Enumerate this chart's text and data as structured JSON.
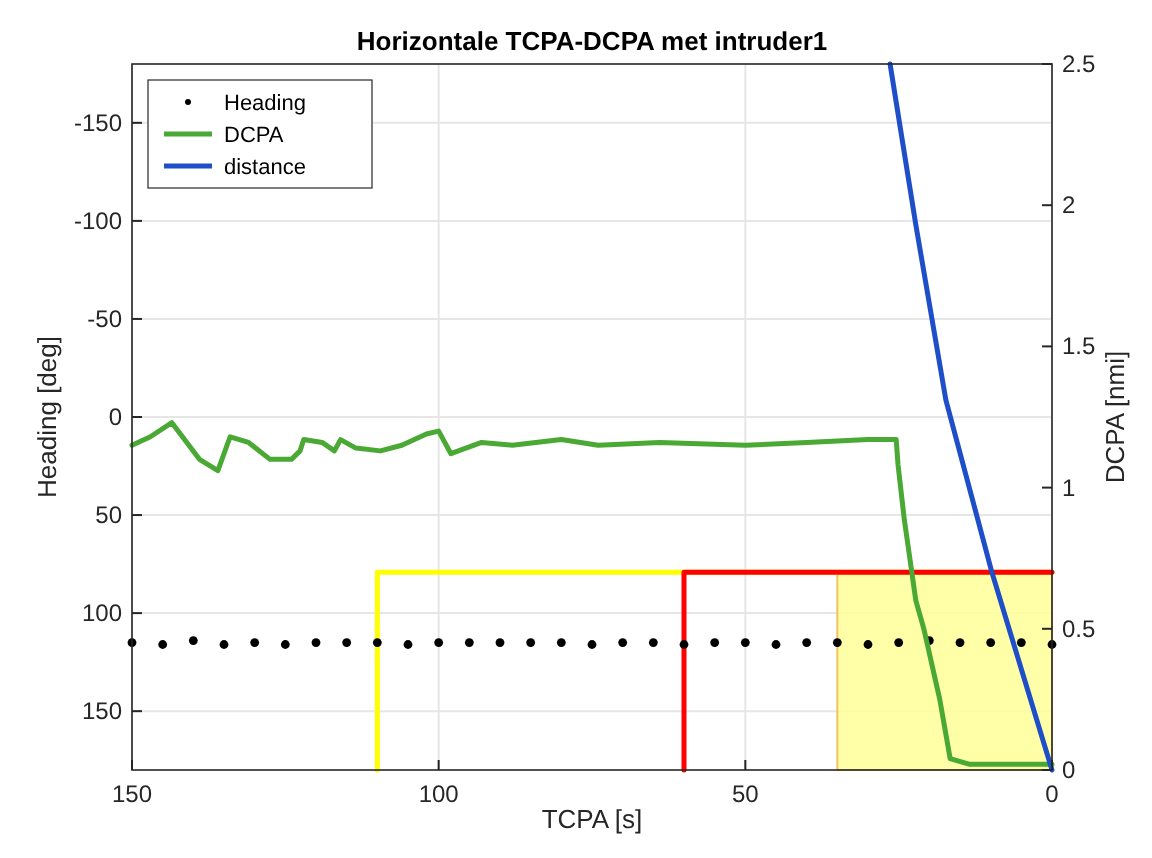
{
  "chart_data": {
    "type": "line",
    "title": "Horizontale TCPA-DCPA met intruder1",
    "xlabel": "TCPA [s]",
    "ylabel": "Heading [deg]",
    "y2label": "DCPA [nmi]",
    "xlim": [
      150,
      0
    ],
    "xticks": [
      150,
      100,
      50,
      0
    ],
    "ylim": [
      180,
      -180
    ],
    "yticks": [
      -150,
      -100,
      -50,
      0,
      50,
      100,
      150
    ],
    "y2lim": [
      0,
      2.5
    ],
    "y2ticks": [
      0,
      0.5,
      1,
      1.5,
      2,
      2.5
    ],
    "grid": true,
    "legend": "top left",
    "series": [
      {
        "type": "area",
        "axis": "y2",
        "color": "#ffff99",
        "x": [
          35,
          0
        ],
        "values": [
          0.7,
          0.7
        ]
      },
      {
        "type": "line",
        "axis": "y2",
        "color": "#ffff00",
        "x": [
          110,
          110,
          0
        ],
        "values": [
          0,
          0.7,
          0.7
        ]
      },
      {
        "type": "line",
        "axis": "y2",
        "color": "#ff0000",
        "x": [
          60,
          60,
          0
        ],
        "values": [
          0,
          0.7,
          0.7
        ]
      },
      {
        "type": "scatter",
        "name": "Heading",
        "color": "#000000",
        "marker": "circle",
        "x": [
          150,
          145,
          140,
          135,
          130,
          125,
          120,
          115,
          110,
          105,
          100,
          95,
          90,
          85,
          80,
          75,
          70,
          65,
          60,
          55,
          50,
          45,
          40,
          35,
          30,
          25,
          20,
          15,
          10,
          5,
          0
        ],
        "values": [
          115,
          116,
          114,
          116,
          115,
          116,
          115,
          115,
          115,
          116,
          115,
          115,
          115,
          115,
          115,
          116,
          115,
          115,
          116,
          115,
          115,
          116,
          115,
          115,
          116,
          115,
          114,
          115,
          115,
          115,
          116
        ]
      },
      {
        "name": "DCPA",
        "axis": "y2",
        "color": "#4aa834",
        "x": [
          150,
          147,
          143.5,
          139,
          136,
          134,
          131,
          127.5,
          124,
          122.6,
          122,
          119,
          117,
          116,
          113.5,
          109.5,
          106,
          102,
          100,
          98,
          93,
          88,
          80,
          74,
          64,
          50,
          40,
          30,
          25.4,
          25.1,
          24.1,
          22.2,
          20.9,
          18.3,
          16.6,
          13.4,
          0
        ],
        "values": [
          1.15,
          1.18,
          1.23,
          1.1,
          1.06,
          1.18,
          1.16,
          1.1,
          1.1,
          1.13,
          1.17,
          1.16,
          1.13,
          1.17,
          1.14,
          1.13,
          1.15,
          1.19,
          1.2,
          1.12,
          1.16,
          1.15,
          1.17,
          1.15,
          1.16,
          1.15,
          1.16,
          1.17,
          1.17,
          1.08,
          0.89,
          0.6,
          0.5,
          0.25,
          0.04,
          0.02,
          0.02
        ]
      },
      {
        "name": "distance",
        "axis": "y2",
        "color": "#1f4fc8",
        "x": [
          26.4,
          22.2,
          17.3,
          9.8,
          0
        ],
        "values": [
          2.5,
          1.93,
          1.31,
          0.7,
          0
        ]
      }
    ]
  }
}
